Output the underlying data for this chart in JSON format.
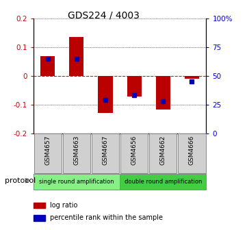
{
  "title": "GDS224 / 4003",
  "samples": [
    "GSM4657",
    "GSM4663",
    "GSM4667",
    "GSM4656",
    "GSM4662",
    "GSM4666"
  ],
  "log_ratio": [
    0.068,
    0.135,
    -0.13,
    -0.072,
    -0.118,
    -0.01
  ],
  "percentile_rank_pct": [
    65,
    65,
    29,
    33,
    28,
    45
  ],
  "groups": [
    {
      "label": "single round amplification",
      "start": 0,
      "end": 3,
      "color": "#88ee88"
    },
    {
      "label": "double round amplification",
      "start": 3,
      "end": 6,
      "color": "#44cc44"
    }
  ],
  "bar_color": "#bb0000",
  "square_color": "#0000bb",
  "ylim_left": [
    -0.2,
    0.2
  ],
  "ylim_right": [
    0,
    100
  ],
  "yticks_left": [
    -0.2,
    -0.1,
    0.0,
    0.1,
    0.2
  ],
  "ytick_labels_left": [
    "-0.2",
    "-0.1",
    "0",
    "0.1",
    "0.2"
  ],
  "yticks_right": [
    0,
    25,
    50,
    75,
    100
  ],
  "ytick_labels_right": [
    "0",
    "25",
    "50",
    "75",
    "100%"
  ],
  "background_color": "#ffffff",
  "protocol_label": "protocol",
  "legend_items": [
    {
      "label": "log ratio",
      "color": "#bb0000"
    },
    {
      "label": "percentile rank within the sample",
      "color": "#0000bb"
    }
  ]
}
